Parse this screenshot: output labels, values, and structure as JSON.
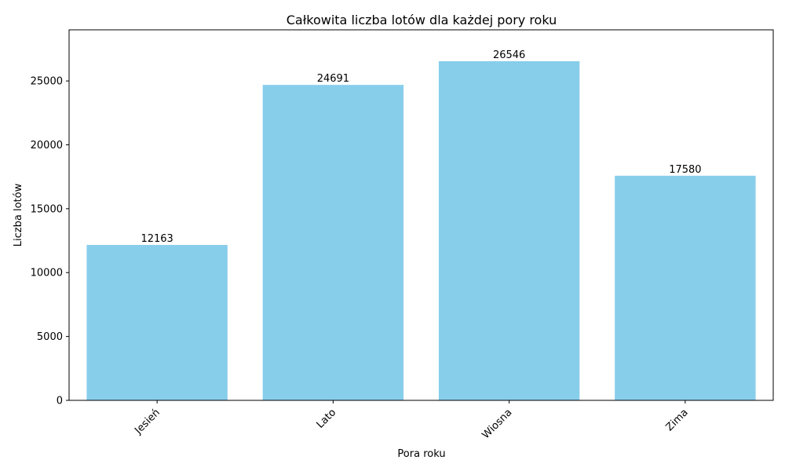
{
  "chart_data": {
    "type": "bar",
    "title": "Całkowita liczba lotów dla każdej pory roku",
    "xlabel": "Pora roku",
    "ylabel": "Liczba lotów",
    "categories": [
      "Jesień",
      "Lato",
      "Wiosna",
      "Zima"
    ],
    "values": [
      12163,
      24691,
      26546,
      17580
    ],
    "data_labels": [
      "12163",
      "24691",
      "26546",
      "17580"
    ],
    "ylim": [
      0,
      29000
    ],
    "yticks": [
      0,
      5000,
      10000,
      15000,
      20000,
      25000
    ],
    "ytick_labels": [
      "0",
      "5000",
      "10000",
      "15000",
      "20000",
      "25000"
    ],
    "grid": false,
    "legend": false,
    "bar_color": "#87ceeb",
    "xtick_rotation": 45
  }
}
